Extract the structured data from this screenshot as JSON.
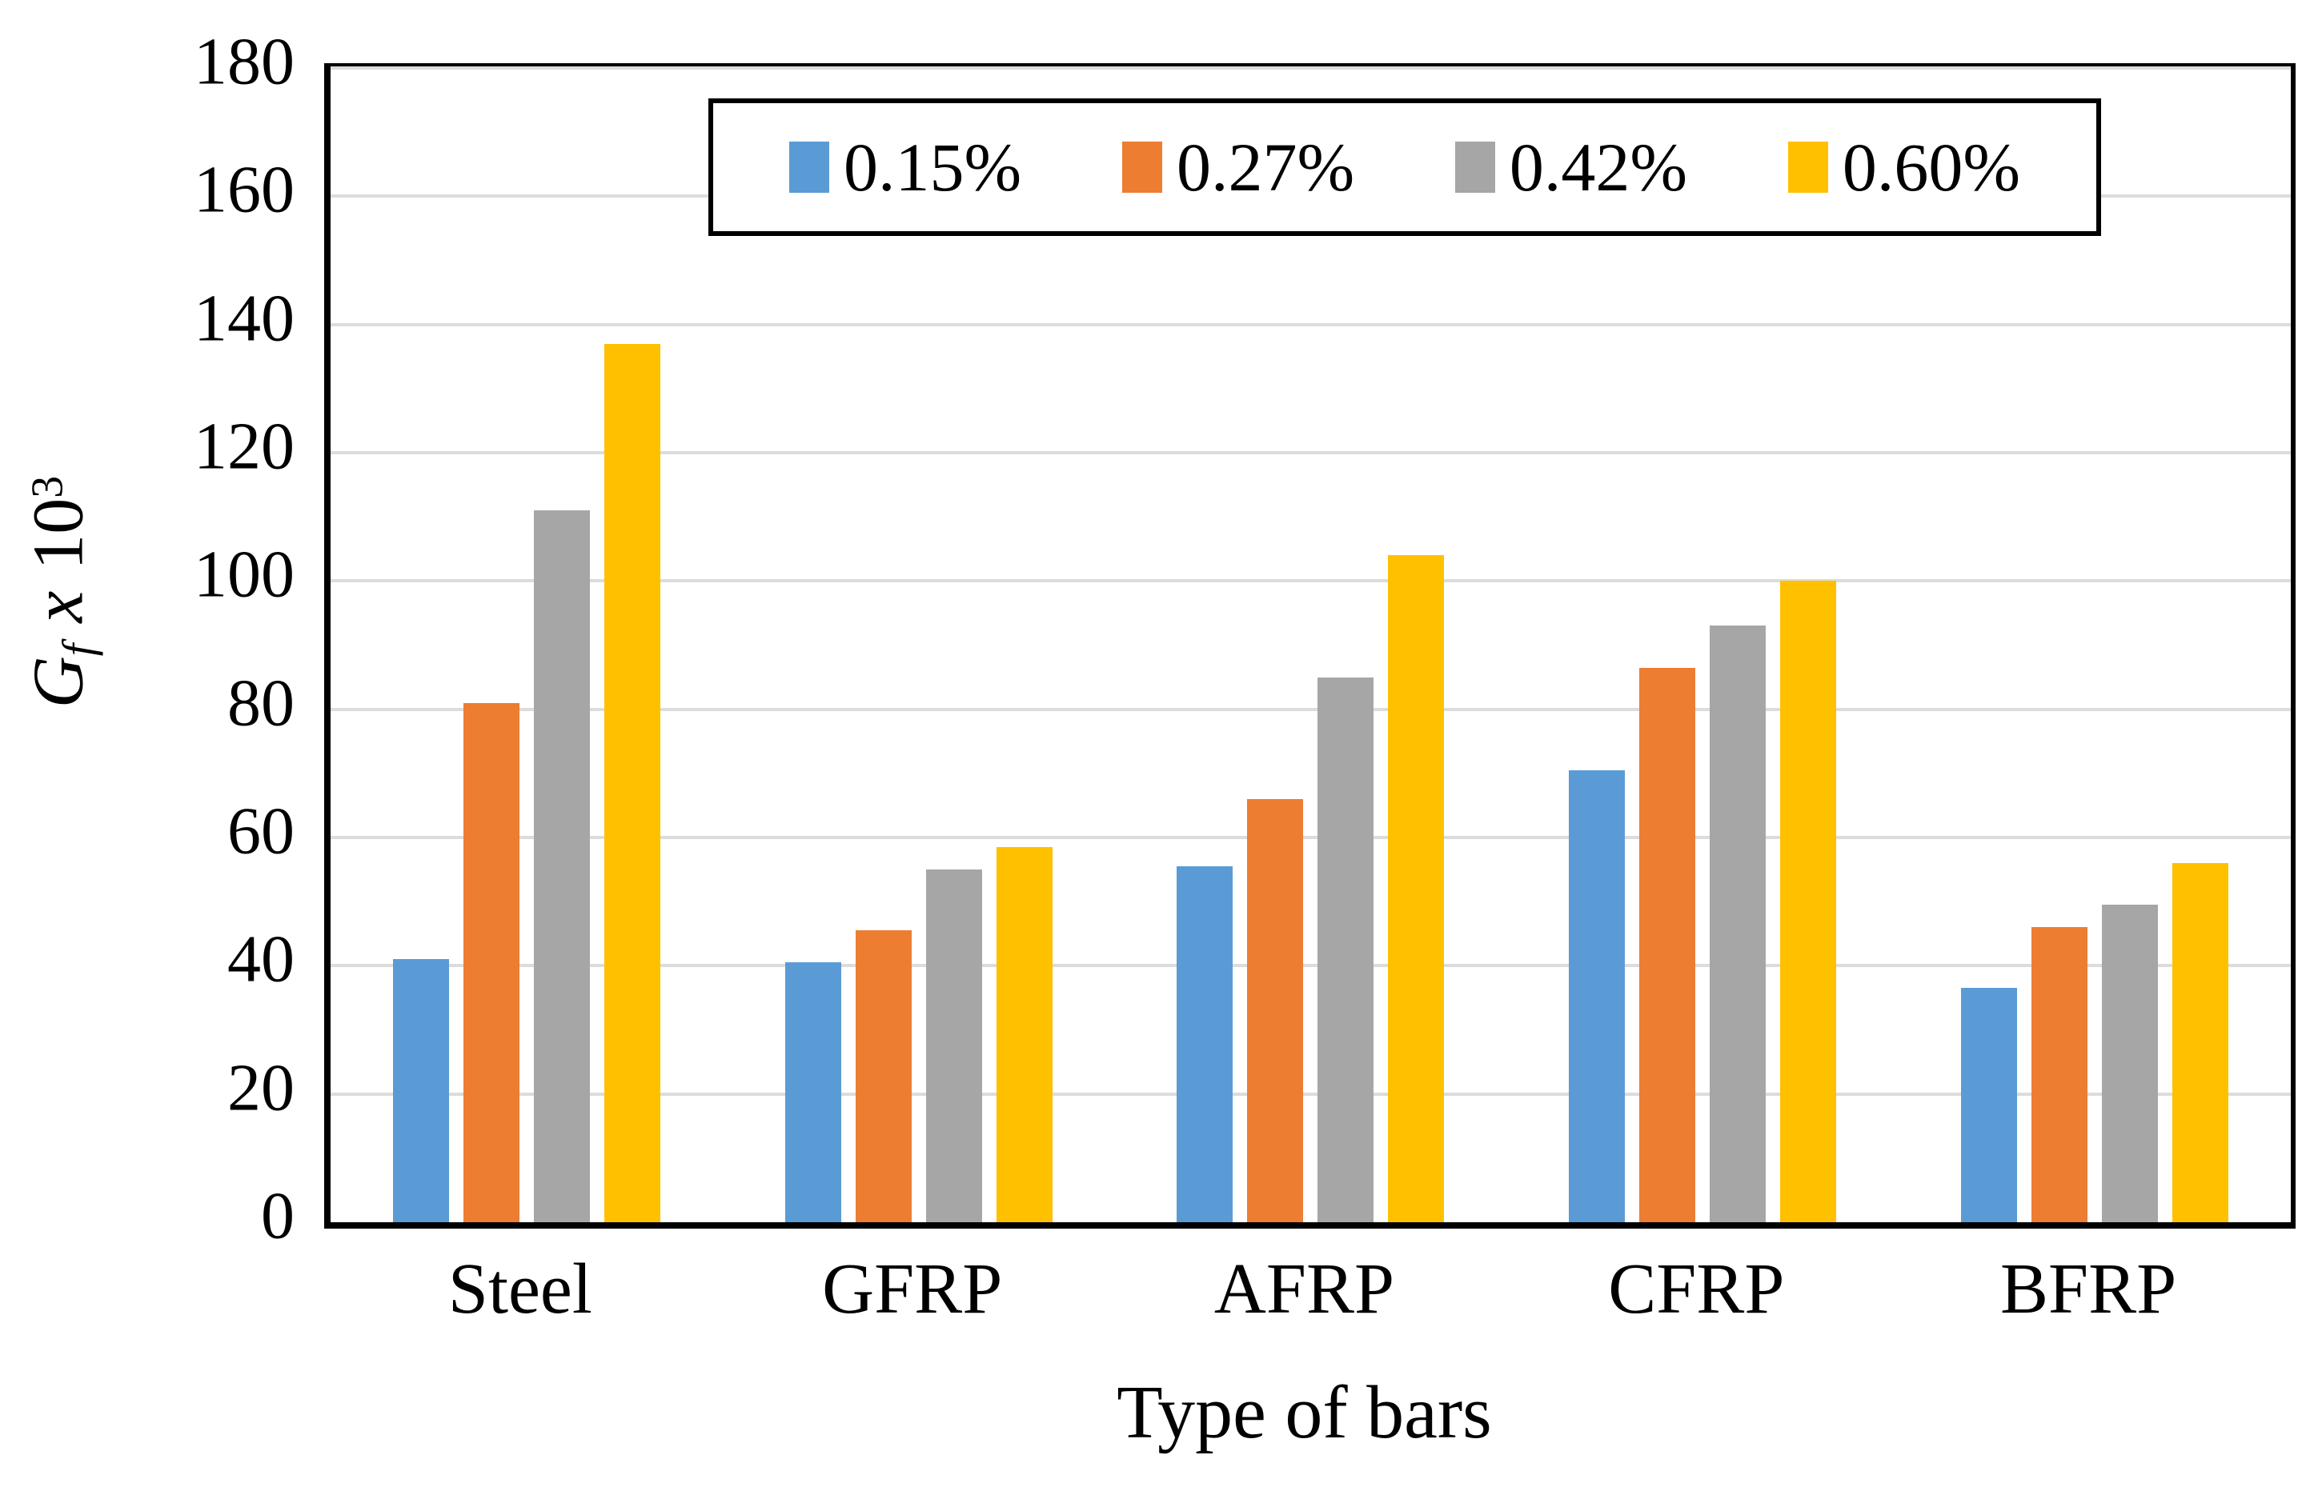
{
  "chart_data": {
    "type": "bar",
    "title": "",
    "categories": [
      "Steel",
      "GFRP",
      "AFRP",
      "CFRP",
      "BFRP"
    ],
    "series": [
      {
        "name": "0.15%",
        "color": "#5B9BD5",
        "values": [
          41,
          40.5,
          55.5,
          70.5,
          36.5
        ]
      },
      {
        "name": "0.27%",
        "color": "#ED7D31",
        "values": [
          81,
          45.5,
          66,
          86.5,
          46
        ]
      },
      {
        "name": "0.42%",
        "color": "#A6A6A6",
        "values": [
          111,
          55,
          85,
          93,
          49.5
        ]
      },
      {
        "name": "0.60%",
        "color": "#FFC000",
        "values": [
          137,
          58.5,
          104,
          100,
          56
        ]
      }
    ],
    "xlabel": "Type of bars",
    "ylabel": {
      "variable": "G",
      "subscript": "f",
      "times": "x",
      "base": "10",
      "exponent": "3"
    },
    "ylim": [
      0,
      180
    ],
    "yticks": [
      0,
      20,
      40,
      60,
      80,
      100,
      120,
      140,
      160,
      180
    ],
    "grid": "horizontal",
    "gridline_color": "#DCDCDC",
    "axis_color": "#000000",
    "legend": {
      "position": "top-inside",
      "border_color": "#000000",
      "background": "#FFFFFF"
    }
  }
}
